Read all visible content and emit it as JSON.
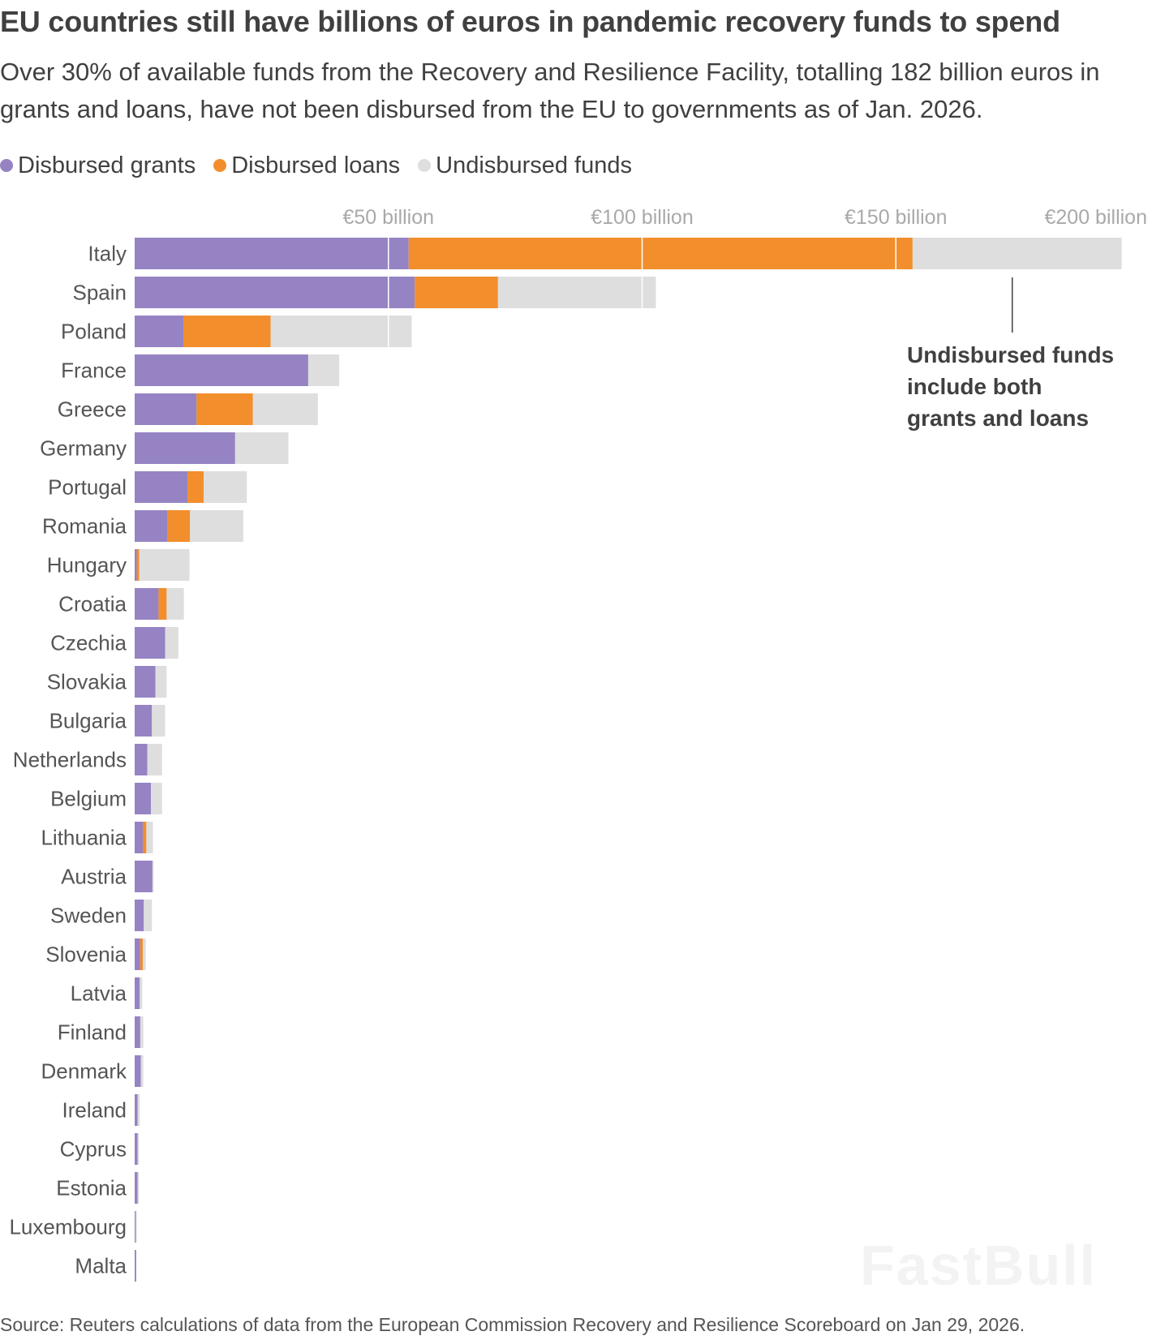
{
  "title": "EU countries still have billions of euros in pandemic recovery funds to spend",
  "subtitle": "Over 30% of available funds from the Recovery and Resilience Facility, totalling 182 billion euros in grants and loans, have not been disbursed from the EU to governments as of Jan. 2026.",
  "legend": {
    "grants": "Disbursed grants",
    "loans": "Disbursed loans",
    "undisbursed": "Undisbursed funds"
  },
  "annotation": {
    "line1": "Undisbursed funds",
    "line2": "include both",
    "line3": "grants and loans"
  },
  "watermark": "FastBull",
  "source": "Source: Reuters calculations of data from the European Commission Recovery and Resilience Scoreboard on Jan 29, 2026.",
  "colors": {
    "grants": "#9583c4",
    "loans": "#f28e2b",
    "undisbursed": "#dedede",
    "gridline": "#ffffff",
    "axis_text": "#a9a9a9"
  },
  "chart_data": {
    "type": "bar",
    "orientation": "horizontal",
    "stacked": true,
    "title": "EU countries still have billions of euros in pandemic recovery funds to spend",
    "xlabel": "",
    "ylabel": "",
    "xlim": [
      0,
      200
    ],
    "x_ticks": [
      50,
      100,
      150,
      200
    ],
    "x_tick_labels": [
      "€50 billion",
      "€100 billion",
      "€150 billion",
      "€200 billion"
    ],
    "categories": [
      "Italy",
      "Spain",
      "Poland",
      "France",
      "Greece",
      "Germany",
      "Portugal",
      "Romania",
      "Hungary",
      "Croatia",
      "Czechia",
      "Slovakia",
      "Bulgaria",
      "Netherlands",
      "Belgium",
      "Lithuania",
      "Austria",
      "Sweden",
      "Slovenia",
      "Latvia",
      "Finland",
      "Denmark",
      "Ireland",
      "Cyprus",
      "Estonia",
      "Luxembourg",
      "Malta"
    ],
    "series": [
      {
        "name": "Disbursed grants",
        "values": [
          54,
          55.2,
          9.6,
          34.2,
          12.2,
          19.8,
          10.4,
          6.4,
          0.4,
          4.7,
          6,
          4.1,
          3.4,
          2.5,
          3.2,
          1.6,
          3.5,
          1.8,
          1.1,
          1,
          1.1,
          1.2,
          0.6,
          0.6,
          0.6,
          0.2,
          0.3
        ]
      },
      {
        "name": "Disbursed loans",
        "values": [
          99.3,
          16.4,
          17.2,
          0,
          11.1,
          0,
          3.2,
          4.5,
          0.5,
          1.6,
          0,
          0,
          0,
          0,
          0,
          0.7,
          0,
          0,
          0.5,
          0,
          0,
          0,
          0,
          0,
          0,
          0,
          0
        ]
      },
      {
        "name": "Undisbursed funds",
        "values": [
          41.2,
          31.1,
          27.8,
          6.1,
          12.8,
          10.5,
          8.5,
          10.5,
          9.9,
          3.4,
          2.6,
          2.2,
          2.6,
          2.9,
          2.2,
          1.3,
          0.2,
          1.6,
          0.6,
          0.5,
          0.6,
          0.5,
          0.4,
          0.1,
          0.1,
          0.1,
          0
        ]
      }
    ]
  }
}
